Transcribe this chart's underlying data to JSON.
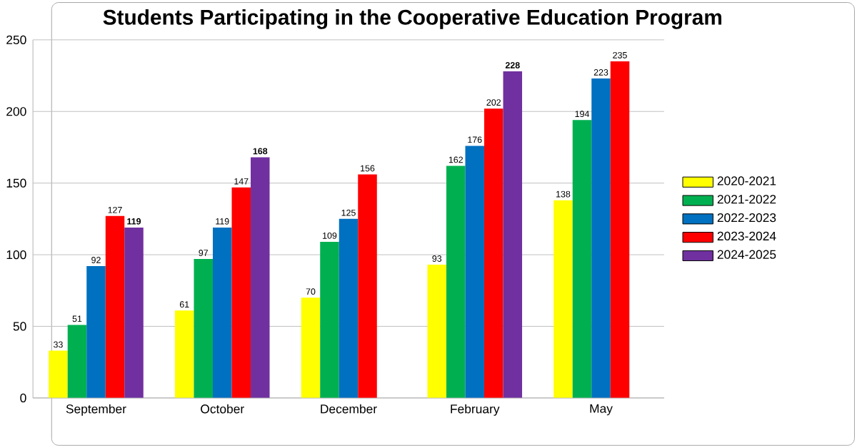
{
  "chart_data": {
    "type": "bar",
    "title": "Students Participating in the Cooperative Education Program",
    "categories": [
      "September",
      "October",
      "December",
      "February",
      "May"
    ],
    "series": [
      {
        "name": "2020-2021",
        "color": "#ffff00",
        "values": [
          33,
          61,
          70,
          93,
          138
        ],
        "value_labels": [
          "33",
          "61",
          "70",
          "93",
          "138"
        ]
      },
      {
        "name": "2021-2022",
        "color": "#00b050",
        "values": [
          51,
          97,
          109,
          162,
          194
        ],
        "value_labels": [
          "51",
          "97",
          "109",
          "162",
          "194"
        ]
      },
      {
        "name": "2022-2023",
        "color": "#0070c0",
        "values": [
          92,
          119,
          125,
          176,
          223
        ],
        "value_labels": [
          "92",
          "119",
          "125",
          "176",
          "223"
        ]
      },
      {
        "name": "2023-2024",
        "color": "#ff0000",
        "values": [
          127,
          147,
          156,
          202,
          235
        ],
        "value_labels": [
          "127",
          "147",
          "156",
          "202",
          "235"
        ]
      },
      {
        "name": "2024-2025",
        "color": "#7030a0",
        "values": [
          119,
          168,
          null,
          228,
          null
        ],
        "value_labels": [
          "**119**",
          "**168**",
          null,
          "**228**",
          null
        ]
      }
    ],
    "ylim": [
      0,
      250
    ],
    "yticks": [
      0,
      50,
      100,
      150,
      200,
      250
    ],
    "grid": "y",
    "legend": "right"
  }
}
